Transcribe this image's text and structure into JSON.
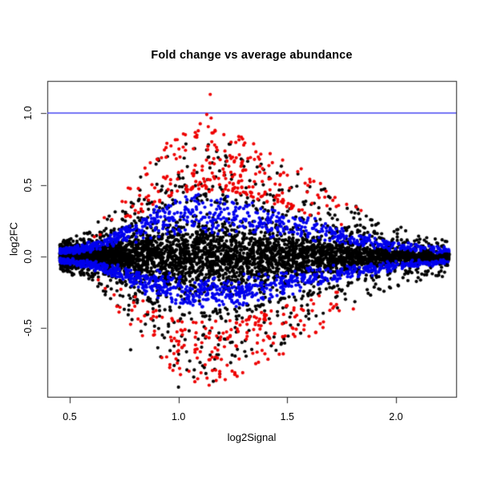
{
  "figure": {
    "background": "#ffffff",
    "box_color": "#2e2e2e"
  },
  "chart_data": {
    "type": "scatter",
    "title": "Fold change vs average abundance",
    "xlabel": "log2Signal",
    "ylabel": "log2FC",
    "x_ticks": [
      "0.5",
      "1.0",
      "1.5",
      "2.0"
    ],
    "y_ticks": [
      "-0.5",
      "0.0",
      "0.5",
      "1.0"
    ],
    "xlim": [
      0.3968,
      2.2766
    ],
    "ylim": [
      -0.9777,
      1.2235
    ],
    "grid": false,
    "legend": "none",
    "reference_line": {
      "y": 1.0,
      "color": "#4545F0"
    },
    "point_radius": 2.1,
    "seed": 42,
    "x_sample": {
      "min": 0.455,
      "span": 1.79,
      "power": 1.38
    },
    "envelope": {
      "base": 0.06,
      "amp": 0.78,
      "center": 1.08,
      "sigma_left": 0.26,
      "sigma_right": 0.52
    },
    "series": [
      {
        "name": "black-points",
        "color": "#000000",
        "count": 5200,
        "kind": "core",
        "core_frac": 0.85,
        "core_scale": 0.52,
        "fringe_base": 0.45,
        "fringe_span": 0.55
      },
      {
        "name": "blue-points",
        "color": "#0000EE",
        "count": 1600,
        "kind": "band",
        "neg_frac": 0.55,
        "mag_base": 0.17,
        "mag_span": 0.36,
        "neg_scale": 0.85
      },
      {
        "name": "red-points",
        "color": "#EE0000",
        "count": 480,
        "kind": "fringe",
        "pos_frac": 0.54,
        "mag_base": 0.55,
        "mag_span": 0.52,
        "x_base": 0.55,
        "x_span": 1.3
      }
    ],
    "outliers": [
      {
        "x": 1.146,
        "y": 1.13,
        "color": "#EE0000"
      },
      {
        "x": 1.13,
        "y": 0.99,
        "color": "#EE0000"
      },
      {
        "x": 1.15,
        "y": 0.965,
        "color": "#EE0000"
      },
      {
        "x": 1.1,
        "y": 0.925,
        "color": "#EE0000"
      },
      {
        "x": 1.137,
        "y": 0.905,
        "color": "#EE0000"
      },
      {
        "x": 1.005,
        "y": -0.78,
        "color": "#EE0000"
      },
      {
        "x": 1.26,
        "y": -0.82,
        "color": "#EE0000"
      },
      {
        "x": 1.0,
        "y": -0.91,
        "color": "#000000"
      },
      {
        "x": 1.07,
        "y": -0.84,
        "color": "#000000"
      },
      {
        "x": 1.16,
        "y": -0.87,
        "color": "#000000"
      },
      {
        "x": 1.24,
        "y": -0.74,
        "color": "#000000"
      },
      {
        "x": 0.78,
        "y": -0.65,
        "color": "#000000"
      }
    ]
  }
}
